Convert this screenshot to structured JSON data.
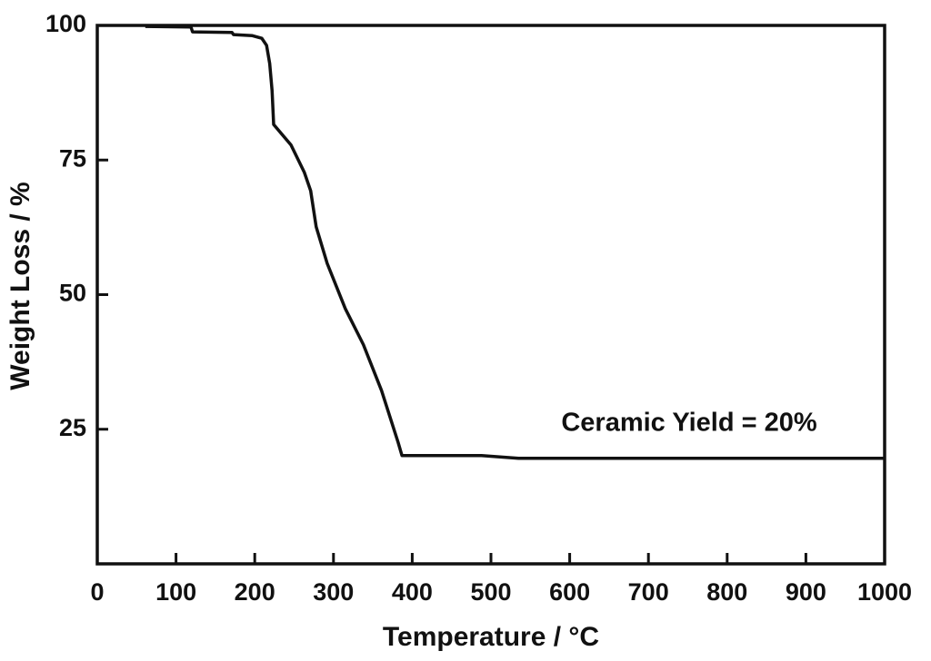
{
  "chart_data": {
    "type": "line",
    "xlabel": "Temperature / °C",
    "ylabel": "Weight Loss / %",
    "annotation": "Ceramic Yield = 20%",
    "color": "#111111",
    "x": [
      61,
      119,
      121,
      171,
      173,
      197,
      209,
      215,
      219,
      222,
      224,
      246,
      263,
      271,
      278,
      292,
      315,
      338,
      361,
      382,
      387,
      488,
      535,
      1000
    ],
    "values": [
      99.8,
      99.7,
      98.8,
      98.7,
      98.3,
      98.1,
      97.6,
      96.3,
      92.9,
      87.9,
      81.6,
      77.8,
      72.7,
      69.3,
      62.6,
      55.8,
      47.4,
      40.7,
      32.2,
      22.6,
      20.1,
      20.1,
      19.6,
      19.6
    ],
    "xlim": [
      0,
      1000
    ],
    "xticks": [
      0,
      100,
      200,
      300,
      400,
      500,
      600,
      700,
      800,
      900,
      1000
    ],
    "ylim": [
      0,
      100
    ],
    "yticks": [
      25,
      50,
      75,
      100
    ],
    "grid": false
  }
}
